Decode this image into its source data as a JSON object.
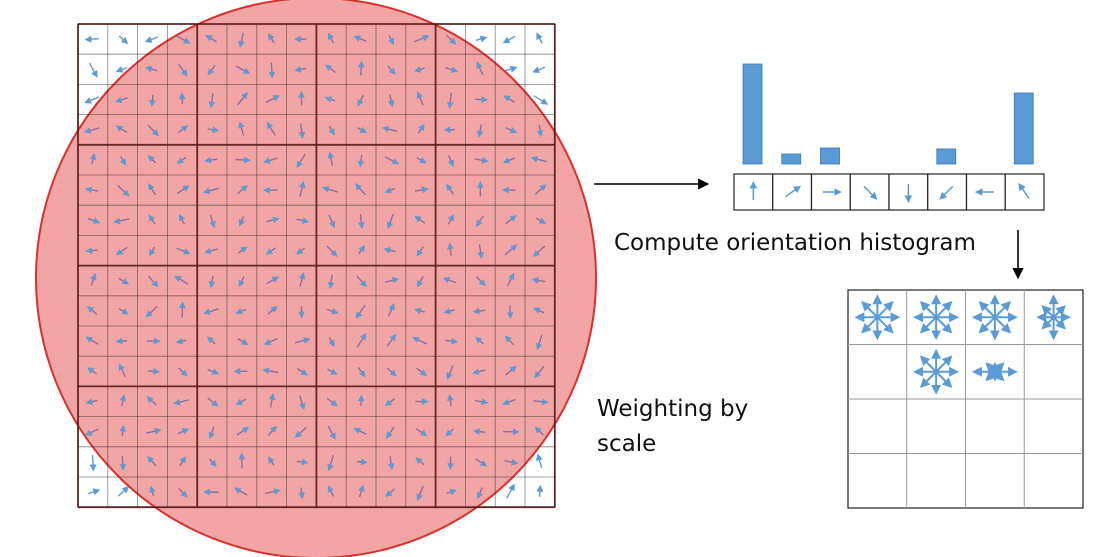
{
  "labels": {
    "histogram_caption": "Compute orientation histogram",
    "weighting_caption": "Weighting by scale"
  },
  "colors": {
    "arrow": "#5b9bd5",
    "circle_fill": "#ee8f8f",
    "circle_stroke": "#d9302e",
    "grid_line": "#222222",
    "major_grid_line": "#5a1a1a"
  },
  "histogram": {
    "bin_directions": [
      "up",
      "up-right",
      "right",
      "down-right",
      "down",
      "down-left",
      "left",
      "up-left"
    ],
    "bin_values": [
      1.0,
      0.1,
      0.16,
      0,
      0,
      0.15,
      0,
      0.71
    ]
  },
  "descriptor_grid": {
    "rows": 4,
    "cols": 4,
    "filled_cells": [
      {
        "row": 0,
        "col": 0,
        "magnitudes": [
          1,
          1,
          1,
          1,
          1,
          1,
          1,
          1
        ]
      },
      {
        "row": 0,
        "col": 1,
        "magnitudes": [
          1,
          1,
          1,
          1,
          1,
          1,
          1,
          1
        ]
      },
      {
        "row": 0,
        "col": 2,
        "magnitudes": [
          1,
          1,
          1,
          1,
          1,
          1,
          1,
          1
        ]
      },
      {
        "row": 0,
        "col": 3,
        "magnitudes": [
          1,
          0.7,
          0.7,
          0.7,
          1,
          0.7,
          0.7,
          0.7
        ]
      },
      {
        "row": 1,
        "col": 1,
        "magnitudes": [
          1,
          1,
          1,
          1,
          1,
          1,
          1,
          1
        ]
      },
      {
        "row": 1,
        "col": 2,
        "magnitudes": [
          0.3,
          0.5,
          1,
          0.5,
          0.3,
          0.5,
          1,
          0.5
        ]
      }
    ]
  },
  "gradient_field": {
    "rows": 16,
    "cols": 16,
    "block_size": 4,
    "orientation_icons": [
      "↑",
      "↗",
      "→",
      "↘",
      "↓",
      "↙",
      "←",
      "↖"
    ]
  }
}
